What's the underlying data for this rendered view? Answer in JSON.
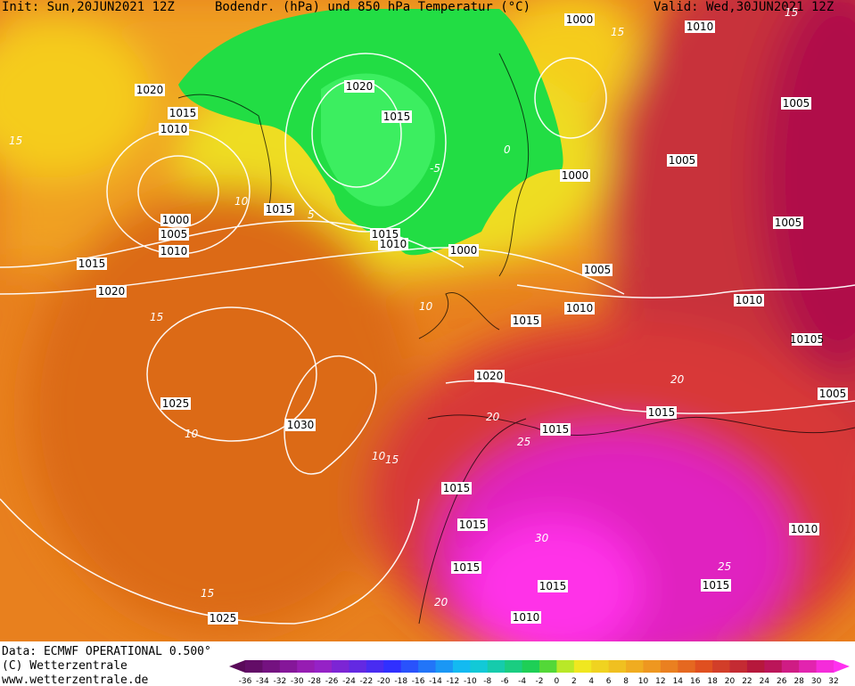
{
  "header": {
    "init": "Init: Sun,20JUN2021 12Z",
    "title": "Bodendr. (hPa) und 850 hPa Temperatur (°C)",
    "valid": "Valid: Wed,30JUN2021 12Z"
  },
  "isobar_labels": [
    "1000",
    "1010",
    "1020",
    "1020",
    "1005",
    "1015",
    "1015",
    "1010",
    "1005",
    "1000",
    "1015",
    "1000",
    "1005",
    "1005",
    "1015",
    "1010",
    "1010",
    "1000",
    "1015",
    "1005",
    "1020",
    "1010",
    "1010",
    "1015",
    "10105",
    "1020",
    "1005",
    "1025",
    "1015",
    "1030",
    "1015",
    "1015",
    "1015",
    "1010",
    "1015",
    "1015",
    "1015",
    "1010",
    "1025"
  ],
  "isotherm_labels": [
    "15",
    "10",
    "5",
    "-5",
    "0",
    "15",
    "10",
    "15",
    "10",
    "15",
    "10",
    "20",
    "25",
    "20",
    "30",
    "25",
    "15",
    "20",
    "15"
  ],
  "footer": {
    "data": "Data: ECMWF OPERATIONAL 0.500°",
    "copyright": "(C) Wetterzentrale",
    "url": "www.wetterzentrale.de"
  },
  "colorbar": {
    "ticks": [
      -36,
      -34,
      -32,
      -30,
      -28,
      -26,
      -24,
      -22,
      -20,
      -18,
      -16,
      -14,
      -12,
      -10,
      -8,
      -6,
      -4,
      -2,
      0,
      2,
      4,
      6,
      8,
      10,
      12,
      14,
      16,
      18,
      20,
      22,
      24,
      26,
      28,
      30,
      32
    ]
  }
}
